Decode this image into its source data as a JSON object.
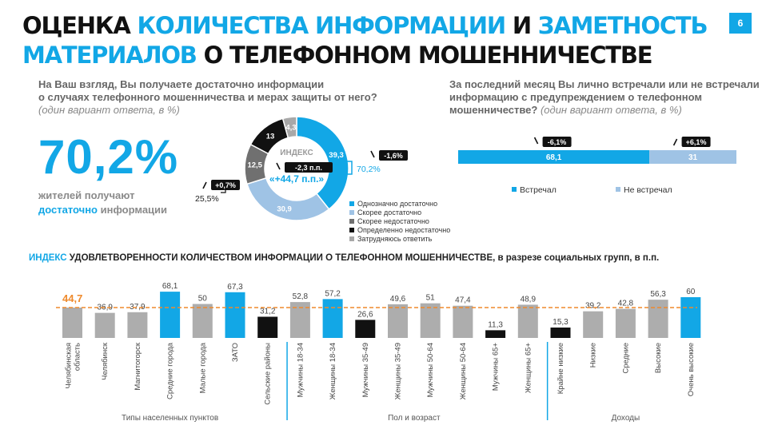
{
  "page": {
    "number": "6",
    "title_parts": [
      {
        "text": "ОЦЕНКА ",
        "accent": false
      },
      {
        "text": "КОЛИЧЕСТВА ИНФОРМАЦИИ",
        "accent": true
      },
      {
        "text": " И ",
        "accent": false
      },
      {
        "text": "ЗАМЕТНОСТЬ",
        "accent": true
      },
      {
        "text": " ",
        "accent": false
      },
      {
        "text": "МАТЕРИАЛОВ",
        "accent": true
      },
      {
        "text": " О ТЕЛЕФОННОМ МОШЕННИЧЕСТВЕ",
        "accent": false
      }
    ]
  },
  "left": {
    "question_line1": "На Ваш взгляд, Вы получаете достаточно информации",
    "question_line2": "о случаях телефонного мошенничества и мерах защиты от него?",
    "note": "(один вариант ответа, в %)",
    "big_value": "70,2%",
    "sub_line1": "жителей получают",
    "sub_accent": "достаточно",
    "sub_rest": " информации"
  },
  "right": {
    "question_line1": "За последний месяц Вы лично встречали или не встречали",
    "question_line2": "информацию с предупреждением о телефонном",
    "question_line3": "мошенничестве?",
    "note": " (один вариант ответа, в %)"
  },
  "colors": {
    "accent": "#12a7e6",
    "light": "#9fc3e5",
    "dark_gray": "#707070",
    "black": "#111111",
    "mid_gray": "#a8a8a8",
    "bar_gray": "#adadad",
    "orange": "#ef8a2c"
  },
  "chart_data": [
    {
      "type": "pie",
      "variant": "donut",
      "categories": [
        "Однозначно достаточно",
        "Скорее достаточно",
        "Скорее недостаточно",
        "Определенно недостаточно",
        "Затрудняюсь ответить"
      ],
      "values": [
        39.3,
        30.9,
        12.5,
        13,
        4.3
      ],
      "labels": [
        "39,3",
        "30,9",
        "12,5",
        "13",
        "4,3"
      ],
      "center_title": "ИНДЕКС",
      "center_value": "«+44,7 п.п.»",
      "center_change": "-2,3 п.п.",
      "right_total": "70,2%",
      "right_change": "-1,6%",
      "left_total": "25,5%",
      "left_change": "+0,7%"
    },
    {
      "type": "bar",
      "orientation": "horizontal-stacked",
      "series": [
        {
          "name": "Встречал",
          "value": 68.1,
          "label": "68,1",
          "change": "-6,1%"
        },
        {
          "name": "Не встречал",
          "value": 31,
          "label": "31",
          "change": "+6,1%"
        }
      ]
    },
    {
      "type": "bar",
      "title_accent": "ИНДЕКС",
      "title_rest": " УДОВЛЕТВОРЕННОСТИ КОЛИЧЕСТВОМ ИНФОРМАЦИИ О ТЕЛЕФОННОМ МОШЕННИЧЕСТВЕ, в разрезе социальных групп, в п.п.",
      "reference_line": 44.7,
      "reference_label": "44,7",
      "categories": [
        "Челябинская область",
        "Челябинск",
        "Магнитогорск",
        "Средние города",
        "Малые города",
        "ЗАТО",
        "Сельские районы",
        "Мужчины 18-34",
        "Женщины 18-34",
        "Мужчины 35-49",
        "Женщины 35-49",
        "Мужчины 50-64",
        "Женщины 50-64",
        "Мужчины 65+",
        "Женщины 65+",
        "Крайне низкие",
        "Низкие",
        "Средние",
        "Высокие",
        "Очень высокие"
      ],
      "values": [
        44.7,
        36.9,
        37.9,
        68.1,
        50,
        67.3,
        31.2,
        52.8,
        57.2,
        26.6,
        49.6,
        51,
        47.4,
        11.3,
        48.9,
        15.3,
        39.2,
        42.8,
        56.3,
        60
      ],
      "value_labels": [
        "",
        "36,9",
        "37,9",
        "68,1",
        "50",
        "67,3",
        "31,2",
        "52,8",
        "57,2",
        "26,6",
        "49,6",
        "51",
        "47,4",
        "11,3",
        "48,9",
        "15,3",
        "39,2",
        "42,8",
        "56,3",
        "60"
      ],
      "tiers": [
        "gray",
        "gray",
        "gray",
        "blue",
        "gray",
        "blue",
        "black",
        "gray",
        "blue",
        "black",
        "gray",
        "gray",
        "gray",
        "black",
        "gray",
        "black",
        "gray",
        "gray",
        "gray",
        "blue"
      ],
      "groups": [
        {
          "name": "Типы населенных пунктов",
          "from": 0,
          "to": 6
        },
        {
          "name": "Пол и возраст",
          "from": 7,
          "to": 14
        },
        {
          "name": "Доходы",
          "from": 15,
          "to": 19
        }
      ]
    }
  ]
}
